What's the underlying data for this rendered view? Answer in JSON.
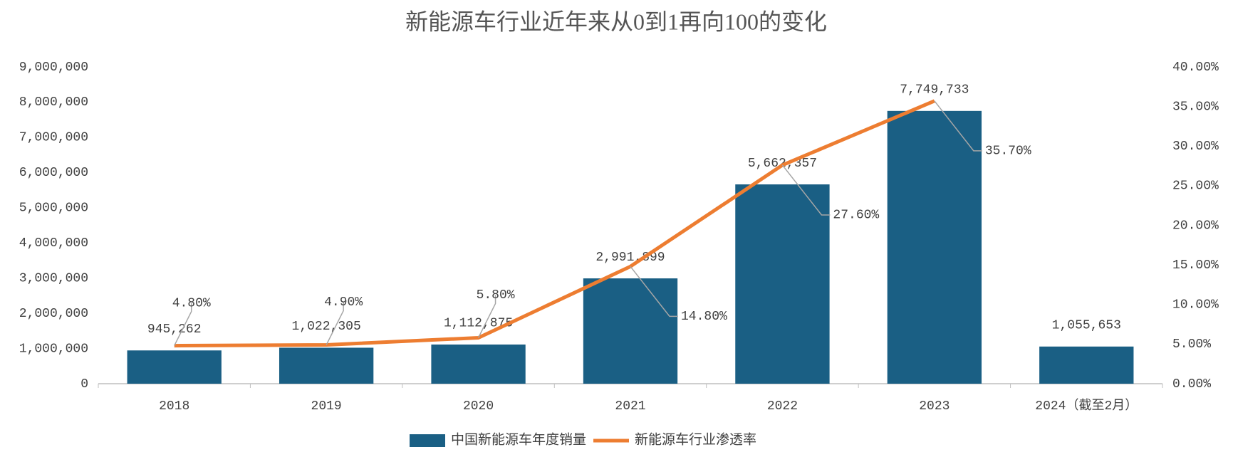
{
  "chart_data": {
    "type": "bar",
    "title": "新能源车行业近年来从0到1再向100的变化",
    "categories": [
      "2018",
      "2019",
      "2020",
      "2021",
      "2022",
      "2023",
      "2024（截至2月）"
    ],
    "series": [
      {
        "name": "中国新能源车年度销量",
        "type": "bar",
        "color": "#1a5f84",
        "values": [
          945262,
          1022305,
          1112875,
          2991899,
          5662357,
          7749733,
          1055653
        ],
        "value_labels": [
          "945,262",
          "1,022,305",
          "1,112,875",
          "2,991,899",
          "5,662,357",
          "7,749,733",
          "1,055,653"
        ]
      },
      {
        "name": "新能源车行业渗透率",
        "type": "line",
        "color": "#ed7d31",
        "axis": "y2",
        "values": [
          4.8,
          4.9,
          5.8,
          14.8,
          27.6,
          35.7,
          null
        ],
        "value_labels": [
          "4.80%",
          "4.90%",
          "5.80%",
          "14.80%",
          "27.60%",
          "35.70%",
          null
        ]
      }
    ],
    "ylim": [
      0,
      9000000
    ],
    "yticks": [
      0,
      {
        "value": 1000000,
        "label": "1,000,000"
      },
      {
        "value": 2000000,
        "label": "2,000,000"
      },
      {
        "value": 3000000,
        "label": "3,000,000"
      },
      {
        "value": 4000000,
        "label": "4,000,000"
      },
      {
        "value": 5000000,
        "label": "5,000,000"
      },
      {
        "value": 6000000,
        "label": "6,000,000"
      },
      {
        "value": 7000000,
        "label": "7,000,000"
      },
      {
        "value": 8000000,
        "label": "8,000,000"
      },
      {
        "value": 9000000,
        "label": "9,000,000"
      }
    ],
    "y2lim": [
      0,
      40
    ],
    "y2ticks": [
      {
        "value": 0,
        "label": "0.00%"
      },
      {
        "value": 5,
        "label": "5.00%"
      },
      {
        "value": 10,
        "label": "10.00%"
      },
      {
        "value": 15,
        "label": "15.00%"
      },
      {
        "value": 20,
        "label": "20.00%"
      },
      {
        "value": 25,
        "label": "25.00%"
      },
      {
        "value": 30,
        "label": "30.00%"
      },
      {
        "value": 35,
        "label": "35.00%"
      },
      {
        "value": 40,
        "label": "40.00%"
      }
    ],
    "grid": false,
    "legend": "bottom"
  }
}
